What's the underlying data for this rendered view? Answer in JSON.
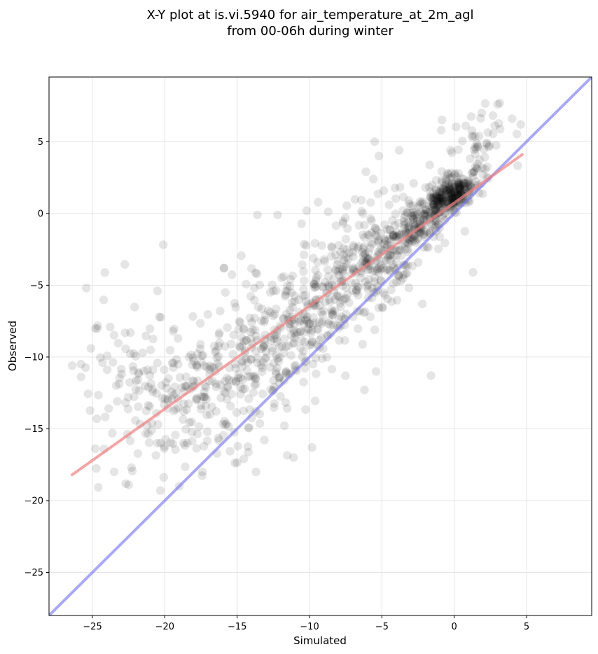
{
  "chart_data": {
    "type": "scatter",
    "title_lines": [
      "X-Y plot at is.vi.5940 for air_temperature_at_2m_agl",
      "from 00-06h during winter"
    ],
    "xlabel": "Simulated",
    "ylabel": "Observed",
    "xlim": [
      -28,
      9.5
    ],
    "ylim": [
      -28,
      9.5
    ],
    "x_ticks": [
      -25,
      -20,
      -15,
      -10,
      -5,
      0,
      5
    ],
    "y_ticks": [
      -25,
      -20,
      -15,
      -10,
      -5,
      0,
      5
    ],
    "x_tick_labels": [
      "−25",
      "−20",
      "−15",
      "−10",
      "−5",
      "0",
      "5"
    ],
    "y_tick_labels": [
      "−25",
      "−20",
      "−15",
      "−10",
      "−5",
      "0",
      "5"
    ],
    "grid": true,
    "point_color": "#000000",
    "point_alpha": 0.1,
    "fit_line": {
      "color": "#f08080",
      "points": [
        [
          -26.4,
          -18.2
        ],
        [
          4.7,
          4.1
        ]
      ]
    },
    "identity_line": {
      "color": "#7070ee",
      "points": [
        [
          -28,
          -28
        ],
        [
          9.5,
          9.5
        ]
      ]
    },
    "clusters": [
      {
        "center": [
          -0.2,
          1.4
        ],
        "spread": [
          0.9,
          0.7
        ],
        "count": 240,
        "corr": 0.6
      },
      {
        "center": [
          -2.5,
          -0.8
        ],
        "spread": [
          1.5,
          1.5
        ],
        "count": 210,
        "corr": 0.7
      },
      {
        "center": [
          -6.5,
          -4.2
        ],
        "spread": [
          2.2,
          2.2
        ],
        "count": 230,
        "corr": 0.6
      },
      {
        "center": [
          -11.5,
          -8.3
        ],
        "spread": [
          2.6,
          2.6
        ],
        "count": 260,
        "corr": 0.5
      },
      {
        "center": [
          -17.0,
          -12.0
        ],
        "spread": [
          3.0,
          3.0
        ],
        "count": 230,
        "corr": 0.3
      },
      {
        "center": [
          -23.0,
          -12.0
        ],
        "spread": [
          2.0,
          3.2
        ],
        "count": 70,
        "corr": 0.3
      },
      {
        "center": [
          1.5,
          5.0
        ],
        "spread": [
          1.6,
          1.5
        ],
        "count": 50,
        "corr": 0.3
      },
      {
        "center": [
          -7.5,
          -1.5
        ],
        "spread": [
          2.5,
          1.8
        ],
        "count": 45,
        "corr": 0.3
      }
    ],
    "extra_points": [
      [
        -26.4,
        -10.6
      ],
      [
        -25.8,
        -10.5
      ],
      [
        -25.1,
        -9.4
      ],
      [
        -24.8,
        -8.0
      ],
      [
        -24.2,
        -16.4
      ],
      [
        -23.5,
        -18.0
      ],
      [
        -22.5,
        -18.9
      ],
      [
        -22.3,
        -17.7
      ],
      [
        -20.3,
        -19.3
      ],
      [
        -19.0,
        -19.0
      ],
      [
        -18.7,
        -16.0
      ],
      [
        -17.4,
        -18.0
      ],
      [
        -20.5,
        -5.4
      ],
      [
        -15.9,
        -3.8
      ],
      [
        -13.6,
        -0.1
      ],
      [
        -12.2,
        -0.1
      ],
      [
        -10.2,
        0.2
      ],
      [
        -5.5,
        5.0
      ],
      [
        -5.2,
        4.0
      ],
      [
        -3.8,
        4.4
      ],
      [
        -0.9,
        5.8
      ],
      [
        0.8,
        6.1
      ],
      [
        1.9,
        7.0
      ],
      [
        3.0,
        7.6
      ],
      [
        4.6,
        6.2
      ],
      [
        -6.1,
        2.9
      ],
      [
        1.3,
        -4.1
      ],
      [
        -6.2,
        -12.3
      ],
      [
        -5.4,
        -11.0
      ],
      [
        -1.6,
        -11.3
      ],
      [
        -11.1,
        -17.0
      ],
      [
        -13.7,
        -18.0
      ],
      [
        -4.5,
        0.6
      ],
      [
        4.0,
        6.6
      ],
      [
        2.8,
        6.1
      ],
      [
        -2.2,
        -6.3
      ]
    ],
    "seed": 5940
  }
}
